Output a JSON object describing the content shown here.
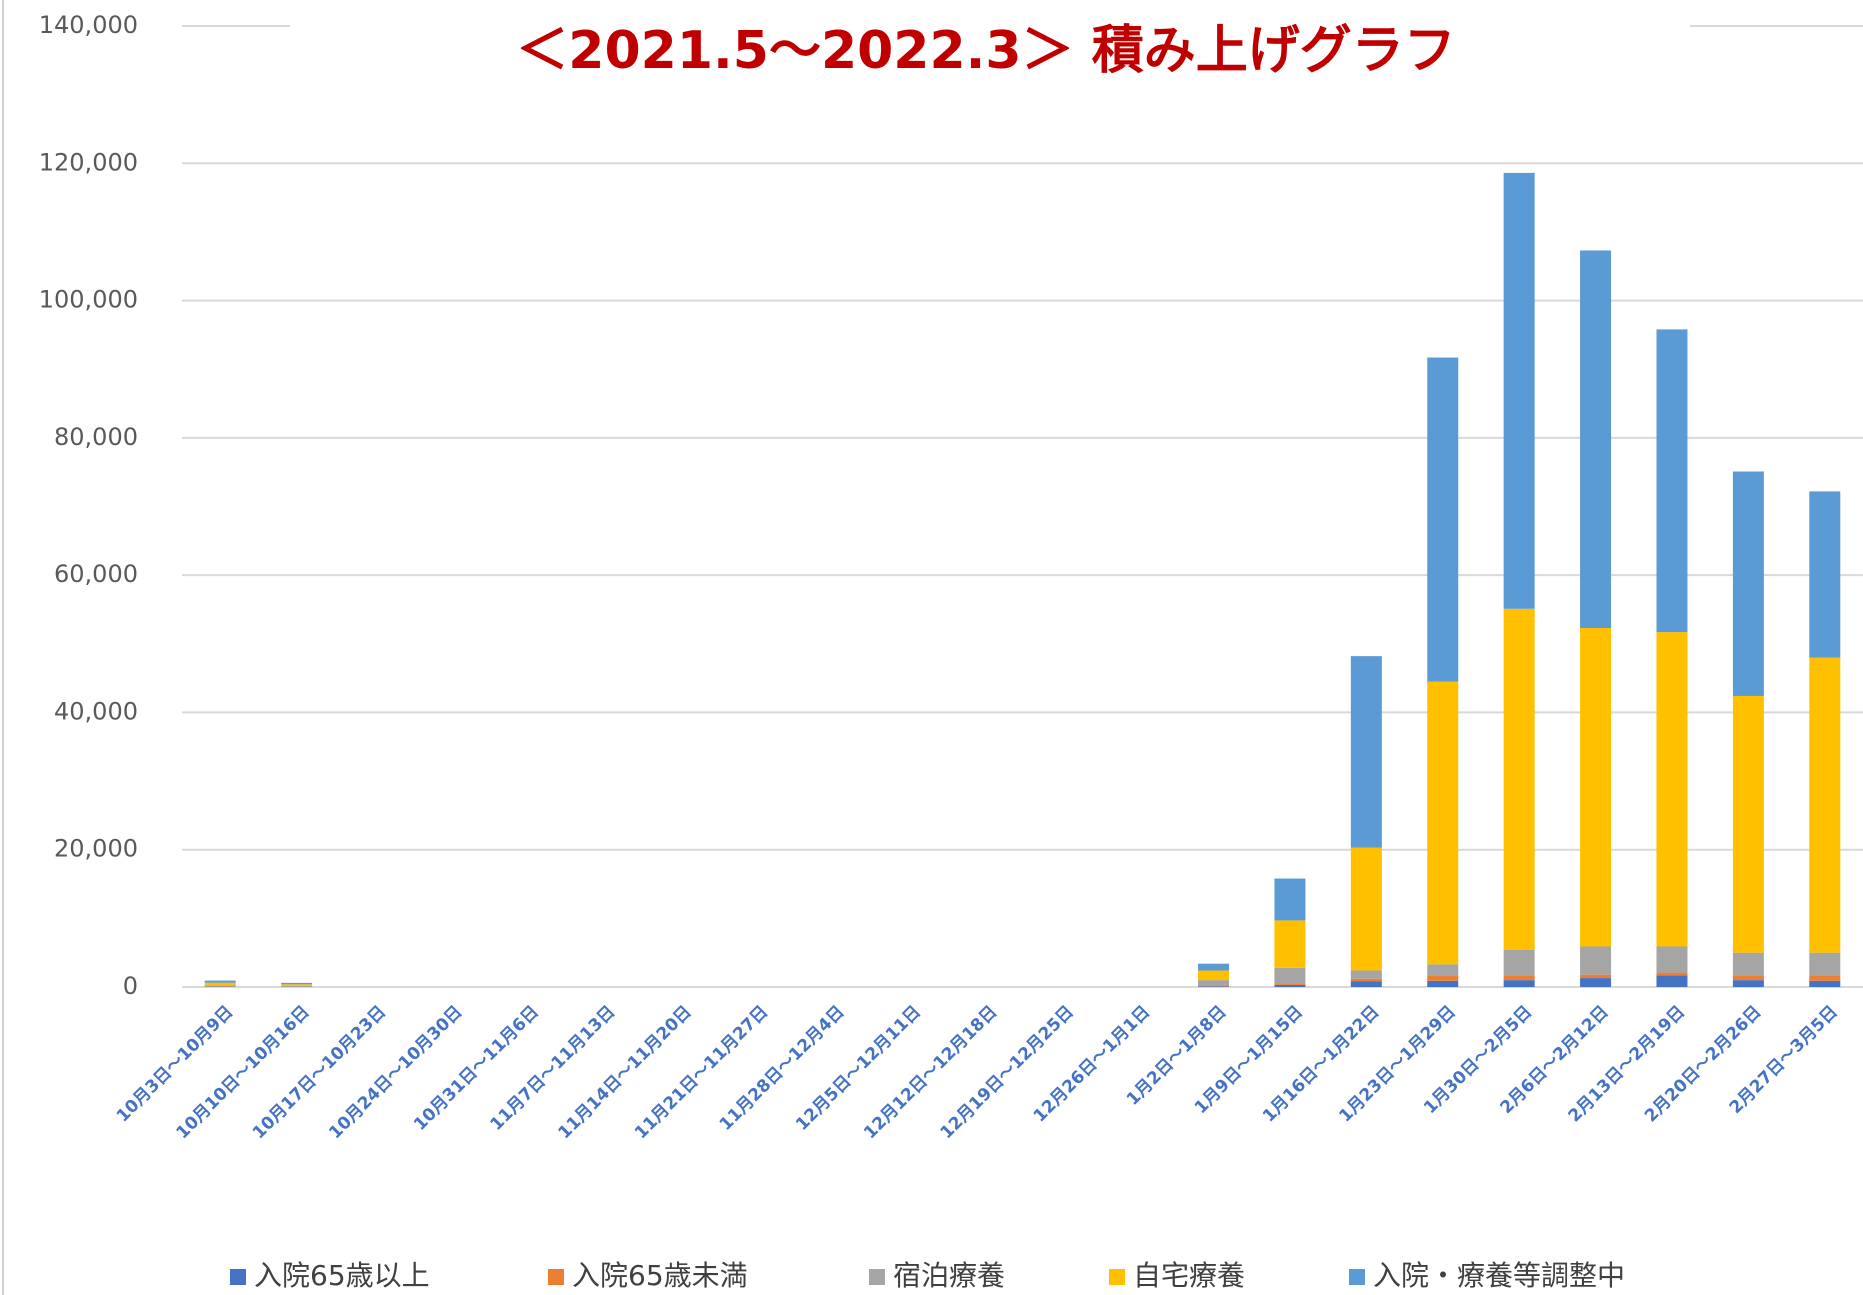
{
  "chart_data": {
    "type": "bar",
    "stacked": true,
    "title": "＜2021.5～2022.3＞ 積み上げグラフ",
    "categories": [
      "10月3日～10月9日",
      "10月10日～10月16日",
      "10月17日～10月23日",
      "10月24日～10月30日",
      "10月31日～11月6日",
      "11月7日～11月13日",
      "11月14日～11月20日",
      "11月21日～11月27日",
      "11月28日～12月4日",
      "12月5日～12月11日",
      "12月12日～12月18日",
      "12月19日～12月25日",
      "12月26日～1月1日",
      "1月2日～1月8日",
      "1月9日～1月15日",
      "1月16日～1月22日",
      "1月23日～1月29日",
      "1月30日～2月5日",
      "2月6日～2月12日",
      "2月13日～2月19日",
      "2月20日～2月26日",
      "2月27日～3月5日"
    ],
    "series": [
      {
        "name": "入院65歳以上",
        "color": "#4472c4",
        "values": [
          50,
          30,
          0,
          0,
          0,
          0,
          0,
          0,
          0,
          0,
          0,
          0,
          0,
          100,
          300,
          800,
          900,
          1000,
          1300,
          1700,
          1000,
          900
        ]
      },
      {
        "name": "入院65歳未満",
        "color": "#ed7d31",
        "values": [
          30,
          20,
          0,
          0,
          0,
          0,
          0,
          0,
          0,
          0,
          0,
          0,
          0,
          50,
          200,
          400,
          700,
          700,
          500,
          400,
          700,
          800
        ]
      },
      {
        "name": "宿泊療養",
        "color": "#a5a5a5",
        "values": [
          150,
          100,
          0,
          0,
          0,
          0,
          0,
          0,
          0,
          0,
          0,
          0,
          0,
          850,
          2300,
          1200,
          1700,
          3700,
          4100,
          3800,
          3300,
          3300
        ]
      },
      {
        "name": "自宅療養",
        "color": "#ffc000",
        "values": [
          400,
          250,
          0,
          0,
          0,
          0,
          0,
          0,
          0,
          0,
          0,
          0,
          0,
          1400,
          6900,
          17900,
          41200,
          49700,
          46400,
          45800,
          37400,
          43000
        ]
      },
      {
        "name": "入院・療養等調整中",
        "color": "#5b9bd5",
        "values": [
          300,
          200,
          0,
          0,
          0,
          0,
          0,
          0,
          0,
          0,
          0,
          0,
          0,
          1000,
          6100,
          27900,
          47200,
          63500,
          55000,
          44100,
          32700,
          24200
        ]
      }
    ],
    "ylim": [
      0,
      140000
    ],
    "yticks": [
      0,
      {
        "value": 20000,
        "label": "20,000"
      },
      {
        "value": 40000,
        "label": "40,000"
      },
      {
        "value": 60000,
        "label": "60,000"
      },
      {
        "value": 80000,
        "label": "80,000"
      },
      {
        "value": 100000,
        "label": "100,000"
      },
      {
        "value": 120000,
        "label": "120,000"
      },
      {
        "value": 140000,
        "label": "140,000"
      }
    ],
    "grid": true,
    "legend": "bottom"
  }
}
